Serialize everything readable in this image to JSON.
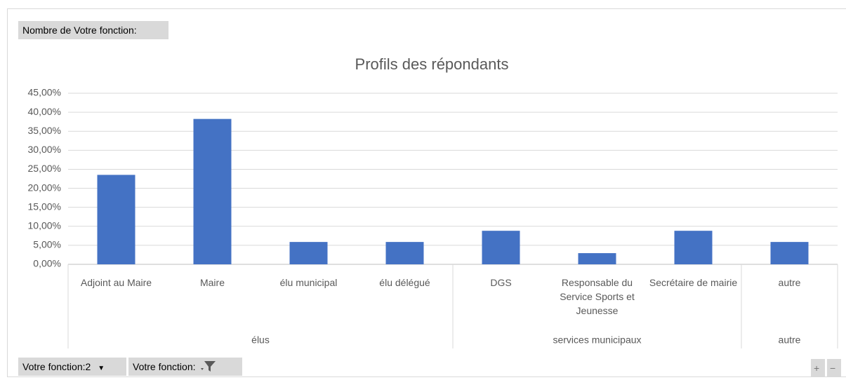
{
  "chart_data": {
    "type": "bar",
    "title": "Profils des répondants",
    "groups": [
      {
        "name": "élus",
        "categories": [
          "Adjoint au Maire",
          "Maire",
          "élu municipal",
          "élu délégué"
        ]
      },
      {
        "name": "services municipaux",
        "categories": [
          "DGS",
          "Responsable du Service Sports et Jeunesse",
          "Secrétaire de mairie"
        ]
      },
      {
        "name": "autre",
        "categories": [
          "autre"
        ]
      }
    ],
    "values": [
      23.53,
      38.24,
      5.88,
      5.88,
      8.82,
      2.94,
      8.82,
      5.88
    ],
    "color": "#4472c4",
    "ylim": [
      0,
      45
    ],
    "yticks": [
      {
        "value": 0,
        "label": "0,00%"
      },
      {
        "value": 5,
        "label": "5,00%"
      },
      {
        "value": 10,
        "label": "10,00%"
      },
      {
        "value": 15,
        "label": "15,00%"
      },
      {
        "value": 20,
        "label": "20,00%"
      },
      {
        "value": 25,
        "label": "25,00%"
      },
      {
        "value": 30,
        "label": "30,00%"
      },
      {
        "value": 35,
        "label": "35,00%"
      },
      {
        "value": 40,
        "label": "40,00%"
      },
      {
        "value": 45,
        "label": "45,00%"
      }
    ],
    "grid": true
  },
  "ui": {
    "value_field": "Nombre de Votre fonction:",
    "axis_field_1": "Votre fonction:2",
    "axis_field_2": "Votre fonction:",
    "expand": "+",
    "collapse": "−"
  }
}
